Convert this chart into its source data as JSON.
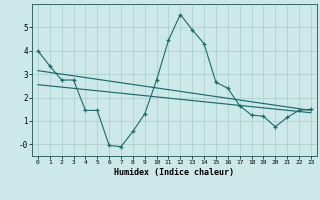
{
  "x": [
    0,
    1,
    2,
    3,
    4,
    5,
    6,
    7,
    8,
    9,
    10,
    11,
    12,
    13,
    14,
    15,
    16,
    17,
    18,
    19,
    20,
    21,
    22,
    23
  ],
  "line1": [
    4.0,
    3.35,
    2.75,
    2.75,
    1.45,
    1.45,
    -0.05,
    -0.1,
    0.55,
    1.3,
    2.75,
    4.45,
    5.55,
    4.9,
    4.3,
    2.65,
    2.4,
    1.65,
    1.25,
    1.2,
    0.75,
    1.15,
    1.45,
    1.5
  ],
  "line2_x": [
    0,
    23
  ],
  "line2_y": [
    3.15,
    1.45
  ],
  "line3_x": [
    0,
    23
  ],
  "line3_y": [
    2.55,
    1.35
  ],
  "line_color": "#1a6b6b",
  "bg_color": "#cce8e8",
  "grid_color": "#aacccc",
  "xlabel": "Humidex (Indice chaleur)",
  "ylim": [
    -0.5,
    6.0
  ],
  "xlim": [
    -0.5,
    23.5
  ],
  "yticks": [
    0,
    1,
    2,
    3,
    4,
    5
  ],
  "ytick_labels": [
    "-0",
    "1",
    "2",
    "3",
    "4",
    "5"
  ],
  "xticks": [
    0,
    1,
    2,
    3,
    4,
    5,
    6,
    7,
    8,
    9,
    10,
    11,
    12,
    13,
    14,
    15,
    16,
    17,
    18,
    19,
    20,
    21,
    22,
    23
  ]
}
